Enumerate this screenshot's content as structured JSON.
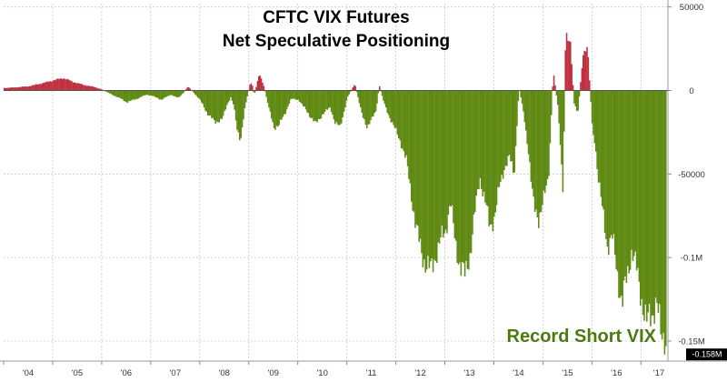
{
  "chart_data": {
    "type": "bar",
    "title": "CFTC VIX Futures",
    "subtitle": "Net Speculative Positioning",
    "xlabel": "",
    "ylabel": "",
    "x_ticks": [
      "'04",
      "'05",
      "'06",
      "'07",
      "'08",
      "'09",
      "'10",
      "'11",
      "'12",
      "'13",
      "'14",
      "'15",
      "'16",
      "'17"
    ],
    "y_ticks": [
      {
        "value": 50000,
        "label": "50000"
      },
      {
        "value": 0,
        "label": "0"
      },
      {
        "value": -50000,
        "label": "-50000"
      },
      {
        "value": -100000,
        "label": "-0.1M"
      },
      {
        "value": -150000,
        "label": "-0.15M"
      }
    ],
    "ylim": [
      -162000,
      52000
    ],
    "xlim": [
      2004.0,
      2017.55
    ],
    "grid": true,
    "last_value": {
      "x": 2017.52,
      "value": -158000,
      "label": "-0.158M"
    },
    "annotation": "Record Short VIX",
    "colors": {
      "positive": "#c0303f",
      "negative": "#5f8a13",
      "annotation": "#4d7a10",
      "tag_bg": "#000000"
    },
    "series": [
      {
        "x": [
          2004.0,
          2004.2,
          2004.5,
          2004.75,
          2005.0,
          2005.2,
          2005.4,
          2005.6,
          2005.85,
          2006.0,
          2006.2,
          2006.35,
          2006.5,
          2006.7,
          2006.9,
          2007.0,
          2007.2,
          2007.4,
          2007.55,
          2007.65,
          2007.75,
          2007.9,
          2008.0,
          2008.15,
          2008.3,
          2008.45,
          2008.55,
          2008.62,
          2008.68,
          2008.75,
          2008.82,
          2008.9,
          2009.0,
          2009.05,
          2009.1,
          2009.2,
          2009.3,
          2009.4,
          2009.5,
          2009.6,
          2009.72,
          2009.85,
          2010.0,
          2010.15,
          2010.35,
          2010.5,
          2010.65,
          2010.75,
          2010.85,
          2011.0,
          2011.15,
          2011.3,
          2011.4,
          2011.5,
          2011.58,
          2011.65,
          2011.72,
          2011.8,
          2011.9,
          2012.0,
          2012.1,
          2012.2,
          2012.3,
          2012.4,
          2012.5,
          2012.6,
          2012.7,
          2012.8,
          2012.9,
          2013.0,
          2013.1,
          2013.2,
          2013.3,
          2013.4,
          2013.5,
          2013.6,
          2013.7,
          2013.8,
          2013.9,
          2014.0,
          2014.1,
          2014.2,
          2014.3,
          2014.4,
          2014.5,
          2014.6,
          2014.7,
          2014.75,
          2014.8,
          2014.9,
          2015.0,
          2015.1,
          2015.2,
          2015.3,
          2015.4,
          2015.45,
          2015.55,
          2015.62,
          2015.7,
          2015.8,
          2015.9,
          2016.0,
          2016.05,
          2016.1,
          2016.2,
          2016.3,
          2016.4,
          2016.5,
          2016.6,
          2016.7,
          2016.8,
          2016.9,
          2017.0,
          2017.1,
          2017.2,
          2017.3,
          2017.4,
          2017.48,
          2017.52
        ],
        "values": [
          1500,
          1800,
          2500,
          4200,
          6000,
          7500,
          5200,
          3500,
          2000,
          500,
          -2500,
          -4500,
          -7000,
          -5000,
          -2500,
          -3000,
          -5500,
          -2500,
          -4500,
          -1500,
          2500,
          -2500,
          -6000,
          -14000,
          -19000,
          -17000,
          -8000,
          -4000,
          -9000,
          -24000,
          -29000,
          -12000,
          3000,
          4500,
          -3000,
          10500,
          2000,
          -11000,
          -22000,
          -21000,
          -14000,
          -5000,
          -5500,
          -11500,
          -20000,
          -14000,
          -10000,
          -19500,
          -22000,
          -4000,
          4000,
          -15000,
          -21500,
          -17000,
          -12500,
          3000,
          -5000,
          -12000,
          -18500,
          -25000,
          -32000,
          -42000,
          -62000,
          -82000,
          -96000,
          -104000,
          -108000,
          -98000,
          -90000,
          -84000,
          -66000,
          -92000,
          -104000,
          -112000,
          -97000,
          -73000,
          -52000,
          -65000,
          -82000,
          -75000,
          -58000,
          -46000,
          -40000,
          -50000,
          2000,
          -15000,
          -38000,
          -56000,
          -70000,
          -76000,
          -66000,
          -52000,
          12000,
          -12000,
          -60000,
          36000,
          28000,
          -7000,
          -14000,
          20000,
          26000,
          -26000,
          -30000,
          -48000,
          -72000,
          -92000,
          -88000,
          -108000,
          -128000,
          -112000,
          -95000,
          -108000,
          -124000,
          -140000,
          -134000,
          -126000,
          -148000,
          -145000,
          -158000
        ]
      }
    ]
  }
}
